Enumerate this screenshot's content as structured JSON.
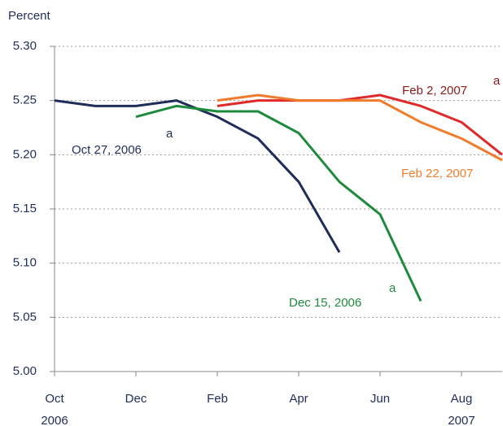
{
  "chart_data": {
    "type": "line",
    "y_axis_label": "Percent",
    "categories": [
      "Oct 2006",
      null,
      "Dec",
      null,
      "Feb",
      null,
      "Apr",
      null,
      "Jun",
      null,
      "Aug 2007",
      null
    ],
    "series": [
      {
        "name": "Oct 27, 2006",
        "note": "a",
        "color": "#1f2d5a",
        "label_color": "#1f2d5a",
        "values": [
          5.25,
          5.245,
          5.245,
          5.25,
          5.235,
          5.215,
          5.175,
          5.11,
          null,
          null,
          null,
          null
        ]
      },
      {
        "name": "Dec 15, 2006",
        "note": "a",
        "color": "#1e8a3c",
        "label_color": "#1e8a3c",
        "values": [
          null,
          null,
          5.235,
          5.245,
          5.24,
          5.24,
          5.22,
          5.175,
          5.145,
          5.065,
          null,
          null
        ]
      },
      {
        "name": "Feb 2, 2007",
        "note": "a",
        "color": "#e02a2a",
        "label_color": "#8b1a1a",
        "values": [
          null,
          null,
          null,
          null,
          5.245,
          5.25,
          5.25,
          5.25,
          5.255,
          5.245,
          5.23,
          5.2
        ]
      },
      {
        "name": "Feb 22, 2007",
        "color": "#f07b2a",
        "label_color": "#f07b2a",
        "values": [
          null,
          null,
          null,
          null,
          5.25,
          5.255,
          5.25,
          5.25,
          5.25,
          5.23,
          5.215,
          5.195
        ]
      }
    ],
    "ylim": [
      5.0,
      5.3
    ],
    "yticks": [
      {
        "value": 5.0,
        "label": "5.00"
      },
      5.05,
      {
        "value": 5.1,
        "label": "5.10"
      },
      5.15,
      {
        "value": 5.2,
        "label": "5.20"
      },
      5.25,
      {
        "value": 5.3,
        "label": "5.30"
      }
    ],
    "grid": true
  }
}
